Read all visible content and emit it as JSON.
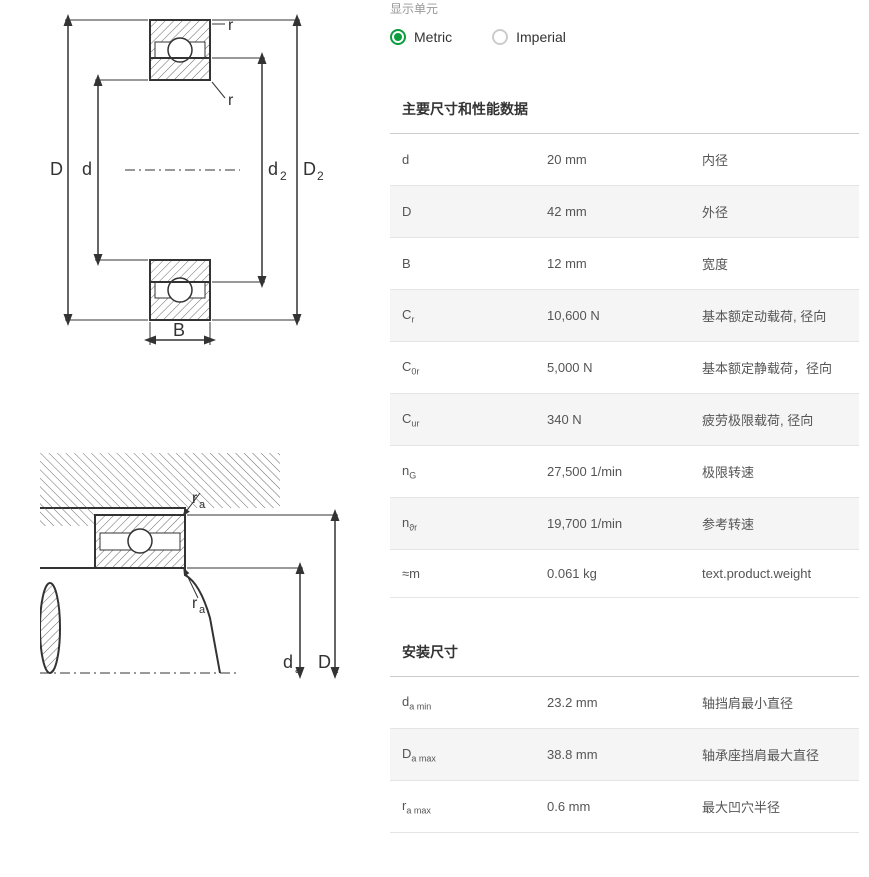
{
  "units": {
    "label": "显示单元",
    "metric": "Metric",
    "imperial": "Imperial"
  },
  "section1": {
    "title": "主要尺寸和性能数据",
    "rows": [
      {
        "sym": "d",
        "sub": "",
        "val": "20 mm",
        "desc": "内径"
      },
      {
        "sym": "D",
        "sub": "",
        "val": "42 mm",
        "desc": "外径"
      },
      {
        "sym": "B",
        "sub": "",
        "val": "12 mm",
        "desc": "宽度"
      },
      {
        "sym": "C",
        "sub": "r",
        "val": "10,600 N",
        "desc": "基本额定动载荷, 径向"
      },
      {
        "sym": "C",
        "sub": "0r",
        "val": "5,000 N",
        "desc": "基本额定静载荷，径向"
      },
      {
        "sym": "C",
        "sub": "ur",
        "val": "340 N",
        "desc": "疲劳极限载荷, 径向"
      },
      {
        "sym": "n",
        "sub": "G",
        "val": "27,500 1/min",
        "desc": "极限转速"
      },
      {
        "sym": "n",
        "sub": "ϑr",
        "val": "19,700 1/min",
        "desc": "参考转速"
      },
      {
        "sym": "≈m",
        "sub": "",
        "val": "0.061 kg",
        "desc": "text.product.weight"
      }
    ]
  },
  "section2": {
    "title": "安装尺寸",
    "rows": [
      {
        "sym": "d",
        "sub": "a min",
        "val": "23.2 mm",
        "desc": "轴挡肩最小直径"
      },
      {
        "sym": "D",
        "sub": "a max",
        "val": "38.8 mm",
        "desc": "轴承座挡肩最大直径"
      },
      {
        "sym": "r",
        "sub": "a max",
        "val": "0.6 mm",
        "desc": "最大凹穴半径"
      }
    ]
  },
  "diagram": {
    "stroke": "#333333",
    "hatch": "#6d6d6d",
    "labels": [
      "D",
      "d",
      "d",
      "D",
      "2",
      "2",
      "r",
      "r",
      "B",
      "r",
      "a",
      "r",
      "a",
      "d",
      "a",
      "D",
      "a"
    ]
  }
}
